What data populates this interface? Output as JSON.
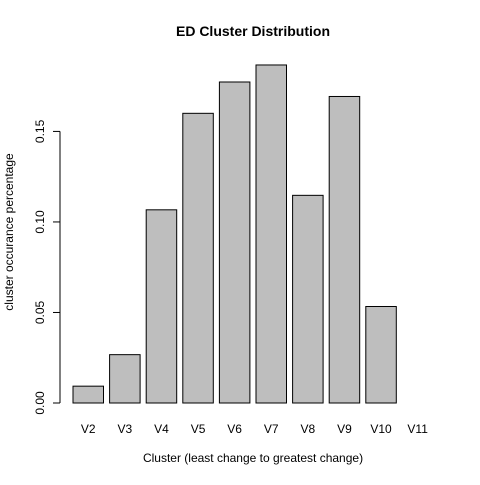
{
  "chart_data": {
    "type": "bar",
    "title": "ED Cluster Distribution",
    "xlabel": "Cluster (least change to greatest change)",
    "ylabel": "cluster occurance percentage",
    "categories": [
      "V2",
      "V3",
      "V4",
      "V5",
      "V6",
      "V7",
      "V8",
      "V9",
      "V10",
      "V11"
    ],
    "values": [
      0.0093,
      0.0267,
      0.1067,
      0.16,
      0.1773,
      0.1867,
      0.1147,
      0.1693,
      0.0533,
      0.0
    ],
    "ylim": [
      0,
      0.19
    ],
    "yticks": [
      0.0,
      0.05,
      0.1,
      0.15
    ],
    "ytick_labels": [
      "0.00",
      "0.05",
      "0.10",
      "0.15"
    ],
    "bar_color": "#bebebe",
    "grid": false,
    "legend": "none"
  }
}
